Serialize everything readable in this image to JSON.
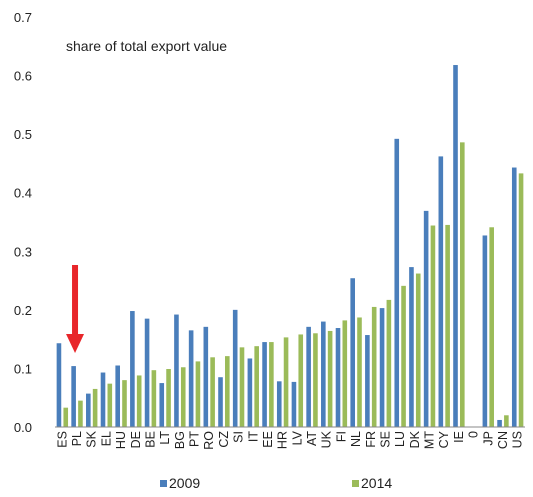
{
  "chart_data": {
    "type": "bar",
    "annotation": "share of total export value",
    "categories": [
      "ES",
      "PL",
      "SK",
      "EL",
      "HU",
      "DE",
      "BE",
      "LT",
      "BG",
      "PT",
      "RO",
      "CZ",
      "SI",
      "IT",
      "EE",
      "HR",
      "LV",
      "AT",
      "UK",
      "FI",
      "NL",
      "FR",
      "SE",
      "LU",
      "DK",
      "MT",
      "CY",
      "IE",
      "0",
      "JP",
      "CN",
      "US"
    ],
    "series": [
      {
        "name": "2009",
        "color": "#4a7ebb",
        "values": [
          0.143,
          0.104,
          0.057,
          0.093,
          0.105,
          0.198,
          0.185,
          0.075,
          0.192,
          0.165,
          0.171,
          0.085,
          0.2,
          0.117,
          0.145,
          0.078,
          0.077,
          0.171,
          0.18,
          0.169,
          0.254,
          0.157,
          0.203,
          0.492,
          0.273,
          0.369,
          0.462,
          0.618,
          0,
          0.327,
          0.012,
          0.443
        ]
      },
      {
        "name": "2014",
        "color": "#9bbb59",
        "values": [
          0.033,
          0.045,
          0.065,
          0.074,
          0.08,
          0.088,
          0.097,
          0.099,
          0.102,
          0.112,
          0.119,
          0.121,
          0.136,
          0.138,
          0.145,
          0.153,
          0.158,
          0.16,
          0.164,
          0.182,
          0.187,
          0.205,
          0.217,
          0.241,
          0.262,
          0.344,
          0.345,
          0.486,
          0,
          0.341,
          0.02,
          0.433
        ]
      }
    ],
    "ylim": [
      0,
      0.7
    ],
    "yticks": [
      "0.0",
      "0.1",
      "0.2",
      "0.3",
      "0.4",
      "0.5",
      "0.6",
      "0.7"
    ],
    "arrow": {
      "category": "PL",
      "color": "#e8262a"
    },
    "legend": {
      "position": "bottom",
      "entries": [
        "2009",
        "2014"
      ]
    },
    "grid": false
  }
}
